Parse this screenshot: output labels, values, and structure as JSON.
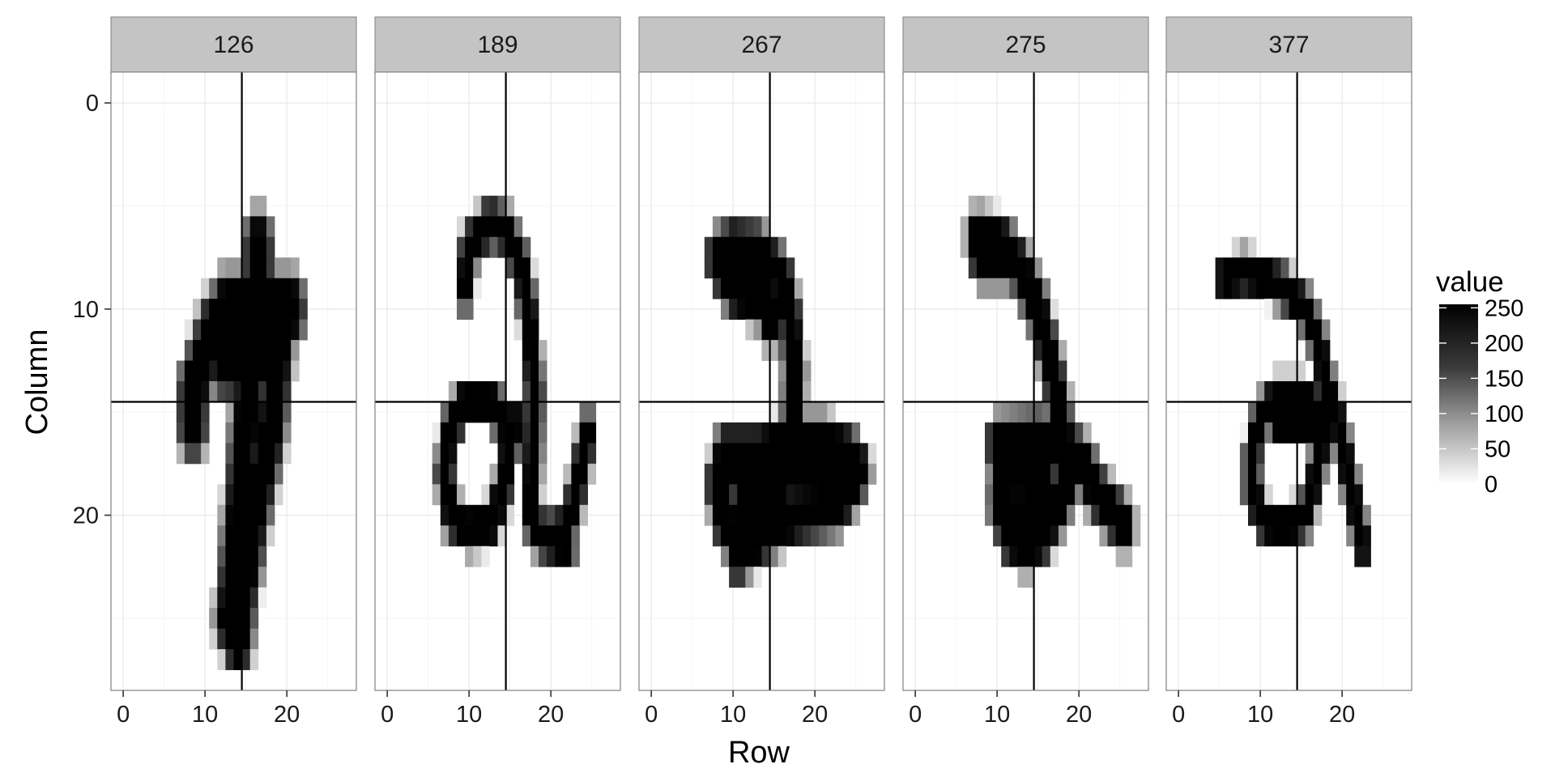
{
  "chart_data": {
    "type": "heatmap",
    "xlabel": "Row",
    "ylabel": "Column",
    "x_ticks": [
      0,
      10,
      20
    ],
    "y_ticks": [
      0,
      10,
      20
    ],
    "xlim": [
      -1,
      29
    ],
    "ylim": [
      29,
      -1
    ],
    "reference_lines": {
      "x": 14.5,
      "y": 14.5
    },
    "legend": {
      "title": "value",
      "ticks": [
        250,
        200,
        150,
        100,
        50,
        0
      ],
      "range": [
        0,
        255
      ],
      "low_color": "#ffffff",
      "high_color": "#000000",
      "placement": "right"
    },
    "grid": true,
    "panels": [
      {
        "label": "126",
        "strokes": [
          [
            [
              20.5,
              10
            ],
            [
              14,
              10
            ],
            [
              11,
              11
            ],
            [
              8.5,
              14
            ],
            [
              8.5,
              15.5
            ]
          ],
          [
            [
              17,
              10
            ],
            [
              19,
              12
            ],
            [
              18,
              16
            ],
            [
              16,
              20
            ],
            [
              14.5,
              24
            ],
            [
              14,
              26
            ]
          ],
          [
            [
              15.5,
              10
            ],
            [
              15.5,
              13
            ],
            [
              14.5,
              18
            ],
            [
              13.5,
              23
            ],
            [
              13,
              25
            ]
          ],
          [
            [
              16.5,
              7
            ],
            [
              16.5,
              9.5
            ]
          ],
          [
            [
              12.5,
              10
            ],
            [
              17.5,
              10
            ],
            [
              17.5,
              12.5
            ],
            [
              12.5,
              12.5
            ]
          ]
        ],
        "stroke_width": 2.4
      },
      {
        "label": "189",
        "strokes": [
          [
            [
              9.5,
              9
            ],
            [
              10,
              7
            ],
            [
              12.5,
              5.8
            ],
            [
              14.5,
              6.2
            ],
            [
              16.5,
              8
            ],
            [
              17.5,
              11
            ],
            [
              18,
              14
            ],
            [
              17.8,
              17
            ],
            [
              17.5,
              20
            ],
            [
              18.8,
              21
            ],
            [
              21,
              21
            ],
            [
              22.5,
              20
            ],
            [
              23.5,
              18
            ],
            [
              24.5,
              16
            ]
          ],
          [
            [
              14.5,
              15.5
            ],
            [
              12.5,
              14.5
            ],
            [
              9.5,
              14.5
            ],
            [
              7.5,
              16
            ],
            [
              7,
              18
            ],
            [
              7.8,
              20
            ],
            [
              10,
              20.7
            ],
            [
              12.5,
              20.5
            ],
            [
              14,
              19
            ],
            [
              14.8,
              17
            ],
            [
              15.5,
              15.5
            ]
          ],
          [
            [
              19,
              21
            ],
            [
              22,
              21.5
            ]
          ]
        ],
        "stroke_width": 1.5
      },
      {
        "label": "267",
        "strokes": [
          [
            [
              8,
              7.5
            ],
            [
              10,
              7
            ],
            [
              13,
              7.2
            ],
            [
              16,
              8.5
            ],
            [
              17,
              10.5
            ],
            [
              17.5,
              13
            ],
            [
              17.3,
              15.5
            ],
            [
              16.5,
              17
            ]
          ],
          [
            [
              9,
              8.5
            ],
            [
              12,
              8.5
            ],
            [
              14,
              9.5
            ],
            [
              14.5,
              10.5
            ]
          ],
          [
            [
              10,
              9
            ],
            [
              13,
              9.5
            ]
          ],
          [
            [
              9,
              17
            ],
            [
              13,
              17
            ],
            [
              17,
              16.5
            ],
            [
              21,
              16.5
            ],
            [
              24,
              17
            ],
            [
              25.5,
              17.8
            ],
            [
              23,
              19.5
            ],
            [
              18,
              20
            ],
            [
              15,
              20.5
            ],
            [
              12,
              21.5
            ],
            [
              9,
              20.5
            ],
            [
              8,
              18.5
            ],
            [
              9,
              17
            ]
          ],
          [
            [
              10.5,
              18
            ],
            [
              15.5,
              18
            ],
            [
              19.5,
              18.2
            ],
            [
              23,
              18
            ]
          ],
          [
            [
              11,
              19.5
            ],
            [
              16,
              19.5
            ]
          ],
          [
            [
              12,
              21
            ],
            [
              10.5,
              22
            ]
          ]
        ],
        "stroke_width": 1.8
      },
      {
        "label": "275",
        "strokes": [
          [
            [
              7.5,
              6.5
            ],
            [
              10.5,
              6.8
            ],
            [
              12.8,
              8
            ],
            [
              15,
              10
            ],
            [
              16.5,
              12.5
            ],
            [
              17.5,
              14.5
            ],
            [
              18,
              16
            ]
          ],
          [
            [
              8,
              7.5
            ],
            [
              11,
              7.5
            ]
          ],
          [
            [
              10,
              16.5
            ],
            [
              15,
              16.3
            ],
            [
              18,
              16.5
            ],
            [
              20.5,
              17.5
            ],
            [
              22,
              18.8
            ],
            [
              24,
              19.8
            ],
            [
              25.5,
              20.5
            ]
          ],
          [
            [
              10.5,
              17.5
            ],
            [
              10.3,
              19.5
            ],
            [
              11.5,
              21
            ],
            [
              13.5,
              21.5
            ],
            [
              15.5,
              21
            ],
            [
              17.5,
              19.5
            ],
            [
              19,
              18
            ]
          ],
          [
            [
              12,
              18
            ],
            [
              16,
              18.5
            ]
          ],
          [
            [
              12,
              19.8
            ],
            [
              15.5,
              19.8
            ]
          ]
        ],
        "stroke_width": 1.8
      },
      {
        "label": "377",
        "strokes": [
          [
            [
              5.5,
              8.5
            ],
            [
              8,
              8.2
            ],
            [
              10.5,
              8.5
            ],
            [
              13,
              9
            ],
            [
              15.5,
              10
            ],
            [
              17,
              11.5
            ],
            [
              18,
              13.5
            ],
            [
              19.5,
              15.5
            ],
            [
              20.5,
              17.5
            ],
            [
              21.5,
              19.5
            ],
            [
              22.5,
              21.5
            ]
          ],
          [
            [
              17.5,
              15
            ],
            [
              15,
              14.3
            ],
            [
              12,
              14.3
            ],
            [
              10,
              15.3
            ],
            [
              9,
              17
            ],
            [
              9,
              19
            ],
            [
              10.5,
              20.3
            ],
            [
              13,
              20.6
            ],
            [
              15.5,
              20
            ],
            [
              16.5,
              18.5
            ],
            [
              17.5,
              16.5
            ],
            [
              18,
              15
            ]
          ],
          [
            [
              12,
              15.5
            ],
            [
              18.5,
              15.5
            ]
          ]
        ],
        "stroke_width": 1.4
      }
    ]
  }
}
